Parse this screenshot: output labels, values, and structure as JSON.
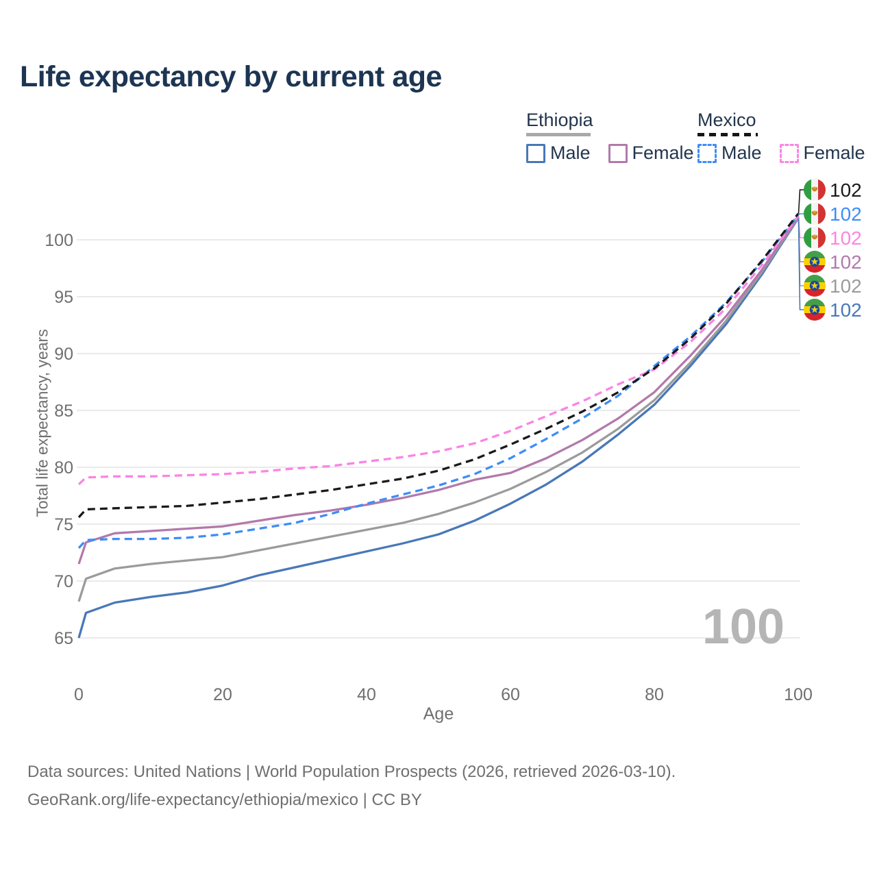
{
  "title": "Life expectancy by current age",
  "watermark": "100",
  "legend": {
    "groups": [
      {
        "label": "Ethiopia",
        "line_style": "solid",
        "items": [
          {
            "label": "Male",
            "color": "#4878b8",
            "dashed": false
          },
          {
            "label": "Female",
            "color": "#b279ab",
            "dashed": false
          }
        ]
      },
      {
        "label": "Mexico",
        "line_style": "dashed",
        "items": [
          {
            "label": "Male",
            "color": "#3e8df5",
            "dashed": true
          },
          {
            "label": "Female",
            "color": "#fb84e4",
            "dashed": true
          }
        ]
      }
    ]
  },
  "chart_data": {
    "type": "line",
    "title": "Life expectancy by current age",
    "xlabel": "Age",
    "ylabel": "Total life expectancy, years",
    "xlim": [
      0,
      100
    ],
    "ylim": [
      63,
      103.5
    ],
    "xticks": [
      0,
      20,
      40,
      60,
      80,
      100
    ],
    "yticks": [
      65,
      70,
      75,
      80,
      85,
      90,
      95,
      100
    ],
    "grid": "horizontal",
    "legend_position": "top-right",
    "ages": [
      0,
      1,
      5,
      10,
      15,
      20,
      25,
      30,
      35,
      40,
      45,
      50,
      55,
      60,
      65,
      70,
      75,
      80,
      85,
      90,
      95,
      100
    ],
    "series": [
      {
        "id": "ethiopia-male",
        "name": "Ethiopia Male",
        "country": "Ethiopia",
        "sex": "Male",
        "color": "#4878b8",
        "dashed": false,
        "flag": "ethiopia",
        "end_label": "102",
        "values": [
          65.0,
          67.2,
          68.1,
          68.6,
          69.0,
          69.6,
          70.5,
          71.2,
          71.9,
          72.6,
          73.3,
          74.1,
          75.3,
          76.8,
          78.5,
          80.5,
          82.9,
          85.5,
          88.9,
          92.6,
          97.0,
          101.9
        ]
      },
      {
        "id": "ethiopia-all",
        "name": "Ethiopia",
        "country": "Ethiopia",
        "sex": "Both",
        "color": "#9b9b9b",
        "dashed": false,
        "flag": "ethiopia",
        "end_label": "102",
        "values": [
          68.2,
          70.2,
          71.1,
          71.5,
          71.8,
          72.1,
          72.7,
          73.3,
          73.9,
          74.5,
          75.1,
          75.9,
          76.9,
          78.1,
          79.6,
          81.3,
          83.4,
          85.9,
          89.2,
          92.9,
          97.2,
          101.95
        ]
      },
      {
        "id": "ethiopia-female",
        "name": "Ethiopia Female",
        "country": "Ethiopia",
        "sex": "Female",
        "color": "#b279ab",
        "dashed": false,
        "flag": "ethiopia",
        "end_label": "102",
        "values": [
          71.5,
          73.4,
          74.2,
          74.4,
          74.6,
          74.8,
          75.3,
          75.8,
          76.2,
          76.7,
          77.3,
          78.0,
          78.9,
          79.5,
          80.8,
          82.4,
          84.3,
          86.6,
          89.8,
          93.3,
          97.4,
          102.05
        ]
      },
      {
        "id": "mexico-male",
        "name": "Mexico Male",
        "country": "Mexico",
        "sex": "Male",
        "color": "#3e8df5",
        "dashed": true,
        "flag": "mexico",
        "end_label": "102",
        "values": [
          72.9,
          73.6,
          73.7,
          73.7,
          73.8,
          74.1,
          74.6,
          75.1,
          75.9,
          76.8,
          77.6,
          78.4,
          79.4,
          80.8,
          82.5,
          84.3,
          86.3,
          88.9,
          91.5,
          94.5,
          98.1,
          102.2
        ]
      },
      {
        "id": "mexico-female",
        "name": "Mexico Female",
        "country": "Mexico",
        "sex": "Female",
        "color": "#fb84e4",
        "dashed": true,
        "flag": "mexico",
        "end_label": "102",
        "values": [
          78.5,
          79.1,
          79.2,
          79.2,
          79.3,
          79.4,
          79.6,
          79.9,
          80.1,
          80.5,
          80.9,
          81.4,
          82.1,
          83.2,
          84.5,
          85.8,
          87.3,
          88.6,
          91.0,
          94.0,
          97.8,
          102.1
        ]
      },
      {
        "id": "mexico-all",
        "name": "Mexico",
        "country": "Mexico",
        "sex": "Both",
        "color": "#1a1a1a",
        "dashed": true,
        "flag": "mexico",
        "end_label": "102",
        "values": [
          75.6,
          76.3,
          76.4,
          76.5,
          76.6,
          76.9,
          77.2,
          77.6,
          78.0,
          78.5,
          79.0,
          79.7,
          80.7,
          82.0,
          83.4,
          84.9,
          86.6,
          88.7,
          91.3,
          94.4,
          98.2,
          102.3
        ]
      }
    ]
  },
  "footer": {
    "line1": "Data sources: United Nations | World Population Prospects (2026, retrieved 2026-03-10).",
    "line2": "GeoRank.org/life-expectancy/ethiopia/mexico | CC BY"
  }
}
